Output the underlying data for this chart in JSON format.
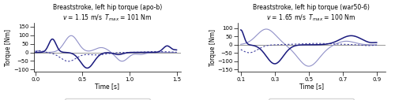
{
  "left": {
    "title_line1": "Breaststroke, left hip torque (apo-b)",
    "title_line2": "v = 1.15 m/s  T_max = 101 Nm",
    "xlim": [
      -0.02,
      1.55
    ],
    "xticks": [
      0.0,
      0.5,
      1.0,
      1.5
    ],
    "ylim": [
      -115,
      175
    ],
    "yticks": [
      -100,
      -50,
      0,
      50,
      100,
      150
    ]
  },
  "right": {
    "title_line1": "Breaststroke, left hip torque (war50-6)",
    "title_line2": "v = 1.65 m/s  T_max = 100 Nm",
    "xlim": [
      0.08,
      0.95
    ],
    "xticks": [
      0.1,
      0.3,
      0.5,
      0.7,
      0.9
    ],
    "ylim": [
      -165,
      135
    ],
    "yticks": [
      -150,
      -100,
      -50,
      0,
      50,
      100
    ]
  },
  "xlabel": "Time [s]",
  "ylabel": "Torque [Nm]",
  "col_x": "#1a1a7e",
  "col_y": "#4040a0",
  "col_z": "#9090c8"
}
